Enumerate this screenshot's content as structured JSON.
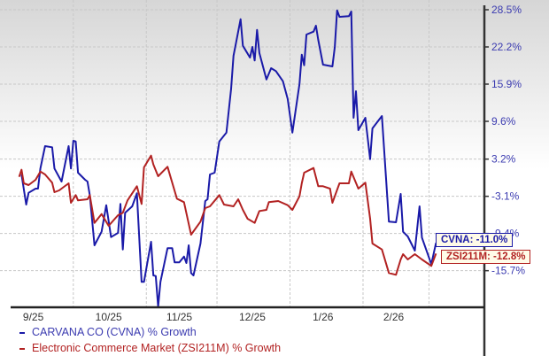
{
  "chart_data": {
    "type": "line",
    "title": "",
    "xlabel": "",
    "ylabel": "",
    "x_tick_labels": [
      "9/25",
      "10/25",
      "11/25",
      "12/25",
      "1/26",
      "2/26"
    ],
    "y_tick_labels": [
      "28.5%",
      "22.2%",
      "15.9%",
      "9.6%",
      "3.2%",
      "-3.1%",
      "-9.4%",
      "-15.7%"
    ],
    "y_ticks": [
      28.5,
      22.2,
      15.9,
      9.6,
      3.2,
      -3.1,
      -9.4,
      -15.7
    ],
    "ylim": [
      -22.5,
      28.5
    ],
    "xlim": [
      "2025-09-01",
      "2026-03-08"
    ],
    "y_axis_side": "right",
    "grid": true,
    "legend_placement": "bottom-left",
    "series": [
      {
        "name": "CARVANA CO (CVNA) % Growth",
        "color": "#1a1aa8",
        "end_label": "CVNA: -11.0%",
        "points": [
          [
            "2025-09-09",
            0.6
          ],
          [
            "2025-09-11",
            -4.5
          ],
          [
            "2025-09-12",
            -2.5
          ],
          [
            "2025-09-15",
            -1.8
          ],
          [
            "2025-09-16",
            -1.8
          ],
          [
            "2025-09-17",
            1.6
          ],
          [
            "2025-09-19",
            5.4
          ],
          [
            "2025-09-22",
            5.2
          ],
          [
            "2025-09-23",
            1.6
          ],
          [
            "2025-09-26",
            -0.6
          ],
          [
            "2025-09-29",
            5.4
          ],
          [
            "2025-09-30",
            1.6
          ],
          [
            "2025-10-01",
            6.3
          ],
          [
            "2025-10-02",
            6.2
          ],
          [
            "2025-10-03",
            0.9
          ],
          [
            "2025-10-06",
            -0.3
          ],
          [
            "2025-10-07",
            -0.6
          ],
          [
            "2025-10-08",
            -2.9
          ],
          [
            "2025-10-10",
            -11.4
          ],
          [
            "2025-10-13",
            -9.1
          ],
          [
            "2025-10-15",
            -4.6
          ],
          [
            "2025-10-17",
            -10.0
          ],
          [
            "2025-10-20",
            -9.3
          ],
          [
            "2025-10-21",
            -4.4
          ],
          [
            "2025-10-22",
            -12.1
          ],
          [
            "2025-10-23",
            -5.9
          ],
          [
            "2025-10-26",
            -4.8
          ],
          [
            "2025-10-28",
            -2.6
          ],
          [
            "2025-10-30",
            -17.6
          ],
          [
            "2025-10-31",
            -17.6
          ],
          [
            "2025-11-03",
            -10.8
          ],
          [
            "2025-11-04",
            -16.5
          ],
          [
            "2025-11-05",
            -16.6
          ],
          [
            "2025-11-06",
            -21.8
          ],
          [
            "2025-11-07",
            -17.6
          ],
          [
            "2025-11-10",
            -11.9
          ],
          [
            "2025-11-12",
            -11.9
          ],
          [
            "2025-11-13",
            -14.3
          ],
          [
            "2025-11-15",
            -14.3
          ],
          [
            "2025-11-17",
            -13.3
          ],
          [
            "2025-11-18",
            -14.4
          ],
          [
            "2025-11-19",
            -11.4
          ],
          [
            "2025-11-20",
            -16.1
          ],
          [
            "2025-11-21",
            -16.5
          ],
          [
            "2025-11-24",
            -11.1
          ],
          [
            "2025-11-26",
            -3.9
          ],
          [
            "2025-11-27",
            -3.6
          ],
          [
            "2025-11-28",
            0.6
          ],
          [
            "2025-11-30",
            0.9
          ],
          [
            "2025-12-02",
            6.2
          ],
          [
            "2025-12-05",
            7.7
          ],
          [
            "2025-12-07",
            15.1
          ],
          [
            "2025-12-08",
            20.7
          ],
          [
            "2025-12-09",
            22.7
          ],
          [
            "2025-12-11",
            26.9
          ],
          [
            "2025-12-12",
            22.4
          ],
          [
            "2025-12-15",
            20.4
          ],
          [
            "2025-12-16",
            22.2
          ],
          [
            "2025-12-17",
            19.9
          ],
          [
            "2025-12-18",
            25.1
          ],
          [
            "2025-12-19",
            21.2
          ],
          [
            "2025-12-22",
            16.7
          ],
          [
            "2025-12-24",
            18.6
          ],
          [
            "2025-12-26",
            18.1
          ],
          [
            "2025-12-29",
            16.4
          ],
          [
            "2025-12-31",
            13.4
          ],
          [
            "2026-01-02",
            7.7
          ],
          [
            "2026-01-05",
            15.9
          ],
          [
            "2026-01-06",
            20.9
          ],
          [
            "2026-01-07",
            19.1
          ],
          [
            "2026-01-08",
            24.3
          ],
          [
            "2026-01-11",
            24.8
          ],
          [
            "2026-01-12",
            25.8
          ],
          [
            "2026-01-13",
            23.4
          ],
          [
            "2026-01-15",
            19.2
          ],
          [
            "2026-01-19",
            18.9
          ],
          [
            "2026-01-20",
            22.2
          ],
          [
            "2026-01-21",
            28.4
          ],
          [
            "2026-01-22",
            27.3
          ],
          [
            "2026-01-26",
            27.4
          ],
          [
            "2026-01-27",
            28.2
          ],
          [
            "2026-01-28",
            10.2
          ],
          [
            "2026-01-29",
            14.7
          ],
          [
            "2026-01-30",
            8.1
          ],
          [
            "2026-02-02",
            10.2
          ],
          [
            "2026-02-04",
            3.2
          ],
          [
            "2026-02-05",
            8.4
          ],
          [
            "2026-02-09",
            10.5
          ],
          [
            "2026-02-12",
            -7.4
          ],
          [
            "2026-02-15",
            -7.5
          ],
          [
            "2026-02-17",
            -2.7
          ],
          [
            "2026-02-18",
            -9.1
          ],
          [
            "2026-02-20",
            -9.9
          ],
          [
            "2026-02-23",
            -12.3
          ],
          [
            "2026-02-25",
            -4.8
          ],
          [
            "2026-02-26",
            -10.1
          ],
          [
            "2026-03-02",
            -14.6
          ],
          [
            "2026-03-04",
            -11.0
          ]
        ]
      },
      {
        "name": "Electronic Commerce Market (ZSI211M) % Growth",
        "color": "#b22222",
        "end_label": "ZSI211M: -12.8%",
        "points": [
          [
            "2025-09-08",
            0.2
          ],
          [
            "2025-09-09",
            1.4
          ],
          [
            "2025-09-10",
            -0.9
          ],
          [
            "2025-09-12",
            -1.2
          ],
          [
            "2025-09-15",
            -0.3
          ],
          [
            "2025-09-17",
            1.1
          ],
          [
            "2025-09-19",
            0.6
          ],
          [
            "2025-09-22",
            -0.8
          ],
          [
            "2025-09-23",
            -2.4
          ],
          [
            "2025-09-25",
            -2.1
          ],
          [
            "2025-09-29",
            -0.9
          ],
          [
            "2025-09-30",
            -4.2
          ],
          [
            "2025-10-02",
            -2.9
          ],
          [
            "2025-10-03",
            -3.8
          ],
          [
            "2025-10-07",
            -3.6
          ],
          [
            "2025-10-08",
            -2.9
          ],
          [
            "2025-10-10",
            -7.6
          ],
          [
            "2025-10-13",
            -6.1
          ],
          [
            "2025-10-16",
            -8.1
          ],
          [
            "2025-10-20",
            -6.3
          ],
          [
            "2025-10-22",
            -5.9
          ],
          [
            "2025-10-24",
            -3.8
          ],
          [
            "2025-10-28",
            -1.4
          ],
          [
            "2025-10-30",
            -4.4
          ],
          [
            "2025-10-31",
            1.8
          ],
          [
            "2025-11-03",
            3.8
          ],
          [
            "2025-11-04",
            2.3
          ],
          [
            "2025-11-06",
            0.3
          ],
          [
            "2025-11-10",
            1.9
          ],
          [
            "2025-11-14",
            -3.5
          ],
          [
            "2025-11-17",
            -4.1
          ],
          [
            "2025-11-20",
            -9.6
          ],
          [
            "2025-11-24",
            -7.4
          ],
          [
            "2025-11-26",
            -5.1
          ],
          [
            "2025-11-28",
            -4.8
          ],
          [
            "2025-12-02",
            -2.9
          ],
          [
            "2025-12-04",
            -4.5
          ],
          [
            "2025-12-08",
            -4.8
          ],
          [
            "2025-12-10",
            -3.6
          ],
          [
            "2025-12-12",
            -5.4
          ],
          [
            "2025-12-14",
            -6.9
          ],
          [
            "2025-12-17",
            -7.6
          ],
          [
            "2025-12-19",
            -5.6
          ],
          [
            "2025-12-22",
            -5.4
          ],
          [
            "2025-12-23",
            -4.1
          ],
          [
            "2025-12-27",
            -3.9
          ],
          [
            "2025-12-31",
            -4.6
          ],
          [
            "2026-01-02",
            -5.4
          ],
          [
            "2026-01-05",
            -3.1
          ],
          [
            "2026-01-06",
            -0.9
          ],
          [
            "2026-01-07",
            0.9
          ],
          [
            "2026-01-11",
            1.7
          ],
          [
            "2026-01-13",
            -1.4
          ],
          [
            "2026-01-15",
            -1.4
          ],
          [
            "2026-01-18",
            -1.8
          ],
          [
            "2026-01-19",
            -4.2
          ],
          [
            "2026-01-22",
            -0.9
          ],
          [
            "2026-01-26",
            -0.9
          ],
          [
            "2026-01-27",
            1.1
          ],
          [
            "2026-01-30",
            -1.8
          ],
          [
            "2026-02-02",
            -0.8
          ],
          [
            "2026-02-04",
            -6.9
          ],
          [
            "2026-02-05",
            -11.1
          ],
          [
            "2026-02-09",
            -12.1
          ],
          [
            "2026-02-12",
            -16.1
          ],
          [
            "2026-02-15",
            -16.4
          ],
          [
            "2026-02-17",
            -13.8
          ],
          [
            "2026-02-18",
            -12.9
          ],
          [
            "2026-02-20",
            -13.8
          ],
          [
            "2026-02-23",
            -12.9
          ],
          [
            "2026-02-26",
            -13.8
          ],
          [
            "2026-03-02",
            -14.9
          ],
          [
            "2026-03-04",
            -12.8
          ]
        ]
      }
    ]
  },
  "colors": {
    "tick_label": "#3b3bb0",
    "x_label": "#333333",
    "grid": "#c8c8c8"
  }
}
